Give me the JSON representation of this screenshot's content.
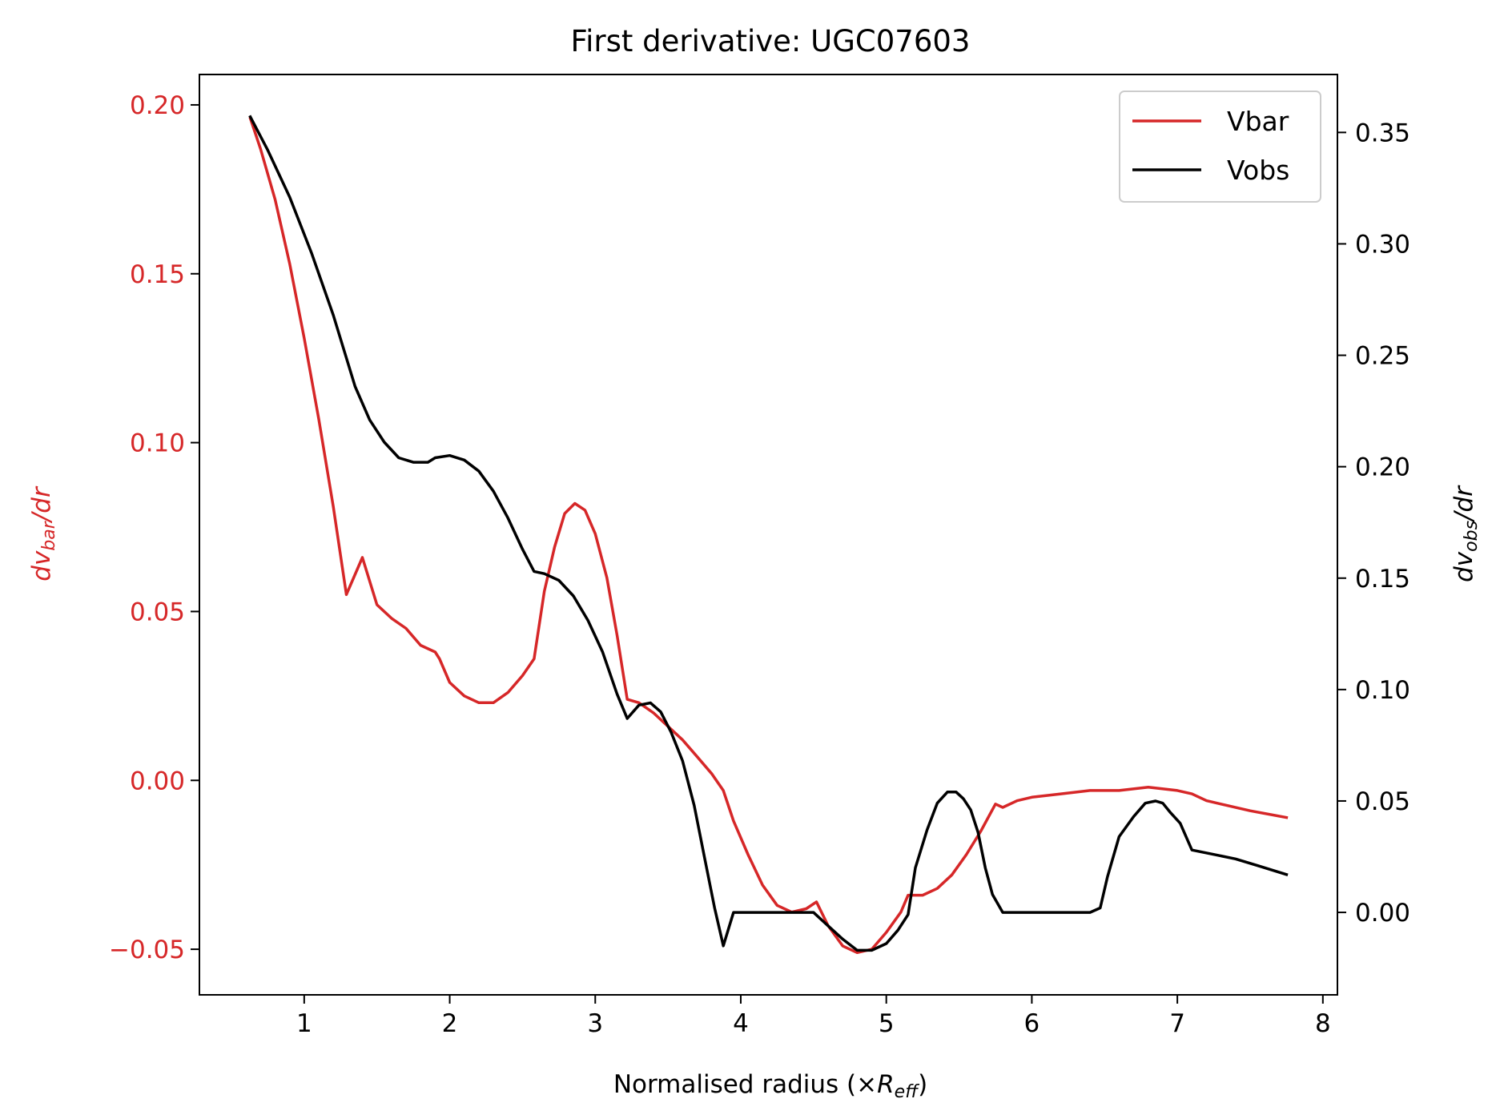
{
  "chart_data": {
    "type": "line",
    "title": "First derivative: UGC07603",
    "xlabel": {
      "prefix": "Normalised radius (×",
      "sym": "R",
      "sub": "eff",
      "suffix": ")"
    },
    "ylabel_left": {
      "prefix": "dv",
      "sub": "bar",
      "suffix": "/dr"
    },
    "ylabel_right": {
      "prefix": "dv",
      "sub": "obs",
      "suffix": "/dr"
    },
    "xlim": [
      0.28,
      8.1
    ],
    "ylim_left": [
      -0.0635,
      0.209
    ],
    "ylim_right": [
      -0.037,
      0.376
    ],
    "x_ticks": [
      1,
      2,
      3,
      4,
      5,
      6,
      7,
      8
    ],
    "x_tick_labels": [
      "1",
      "2",
      "3",
      "4",
      "5",
      "6",
      "7",
      "8"
    ],
    "y_left_ticks": [
      0.2,
      0.15,
      0.1,
      0.05,
      0.0,
      -0.05
    ],
    "y_left_tick_labels": [
      "0.20",
      "0.15",
      "0.10",
      "0.05",
      "0.00",
      "−0.05"
    ],
    "y_right_ticks": [
      0.35,
      0.3,
      0.25,
      0.2,
      0.15,
      0.1,
      0.05,
      0.0
    ],
    "y_right_tick_labels": [
      "0.35",
      "0.30",
      "0.25",
      "0.20",
      "0.15",
      "0.10",
      "0.05",
      "0.00"
    ],
    "legend_position": "top-right",
    "colors": {
      "vbar": "#d62728",
      "vobs": "#000000",
      "left_axis": "#d62728",
      "right_axis": "#000000"
    },
    "series": [
      {
        "name": "Vbar",
        "axis": "left",
        "x": [
          0.63,
          0.7,
          0.8,
          0.9,
          1.0,
          1.1,
          1.2,
          1.29,
          1.4,
          1.5,
          1.6,
          1.7,
          1.8,
          1.9,
          1.93,
          2.0,
          2.1,
          2.2,
          2.3,
          2.4,
          2.5,
          2.58,
          2.65,
          2.72,
          2.79,
          2.86,
          2.93,
          3.0,
          3.08,
          3.15,
          3.22,
          3.3,
          3.4,
          3.5,
          3.6,
          3.7,
          3.8,
          3.88,
          3.95,
          4.05,
          4.15,
          4.25,
          4.35,
          4.45,
          4.52,
          4.6,
          4.7,
          4.8,
          4.9,
          5.0,
          5.1,
          5.15,
          5.25,
          5.35,
          5.45,
          5.55,
          5.65,
          5.75,
          5.8,
          5.9,
          6.0,
          6.2,
          6.4,
          6.6,
          6.8,
          7.0,
          7.1,
          7.2,
          7.3,
          7.5,
          7.75
        ],
        "y": [
          0.196,
          0.187,
          0.172,
          0.153,
          0.131,
          0.107,
          0.081,
          0.055,
          0.066,
          0.052,
          0.048,
          0.045,
          0.04,
          0.038,
          0.036,
          0.029,
          0.025,
          0.023,
          0.023,
          0.026,
          0.031,
          0.036,
          0.056,
          0.069,
          0.079,
          0.082,
          0.08,
          0.073,
          0.06,
          0.043,
          0.024,
          0.023,
          0.02,
          0.016,
          0.012,
          0.007,
          0.002,
          -0.003,
          -0.012,
          -0.022,
          -0.031,
          -0.037,
          -0.039,
          -0.038,
          -0.036,
          -0.043,
          -0.049,
          -0.051,
          -0.05,
          -0.045,
          -0.039,
          -0.034,
          -0.034,
          -0.032,
          -0.028,
          -0.022,
          -0.015,
          -0.007,
          -0.008,
          -0.006,
          -0.005,
          -0.004,
          -0.003,
          -0.003,
          -0.002,
          -0.003,
          -0.004,
          -0.006,
          -0.007,
          -0.009,
          -0.011
        ]
      },
      {
        "name": "Vobs",
        "axis": "right",
        "x": [
          0.63,
          0.75,
          0.9,
          1.05,
          1.2,
          1.35,
          1.45,
          1.55,
          1.65,
          1.75,
          1.8,
          1.85,
          1.9,
          2.0,
          2.1,
          2.2,
          2.3,
          2.4,
          2.5,
          2.58,
          2.65,
          2.75,
          2.85,
          2.95,
          3.05,
          3.15,
          3.22,
          3.3,
          3.38,
          3.45,
          3.52,
          3.6,
          3.68,
          3.75,
          3.82,
          3.88,
          3.95,
          4.05,
          4.15,
          4.3,
          4.5,
          4.6,
          4.7,
          4.8,
          4.9,
          5.0,
          5.08,
          5.15,
          5.2,
          5.28,
          5.35,
          5.42,
          5.48,
          5.53,
          5.58,
          5.63,
          5.68,
          5.73,
          5.8,
          5.9,
          6.0,
          6.2,
          6.4,
          6.47,
          6.52,
          6.6,
          6.7,
          6.78,
          6.85,
          6.9,
          6.95,
          7.02,
          7.1,
          7.25,
          7.4,
          7.55,
          7.75
        ],
        "y": [
          0.357,
          0.342,
          0.321,
          0.296,
          0.268,
          0.236,
          0.221,
          0.211,
          0.204,
          0.202,
          0.202,
          0.202,
          0.204,
          0.205,
          0.203,
          0.198,
          0.189,
          0.177,
          0.163,
          0.153,
          0.152,
          0.149,
          0.142,
          0.131,
          0.117,
          0.098,
          0.087,
          0.093,
          0.094,
          0.09,
          0.081,
          0.068,
          0.048,
          0.025,
          0.002,
          -0.015,
          0.0,
          0.0,
          0.0,
          0.0,
          0.0,
          -0.006,
          -0.012,
          -0.017,
          -0.017,
          -0.014,
          -0.008,
          -0.001,
          0.02,
          0.037,
          0.049,
          0.054,
          0.054,
          0.051,
          0.046,
          0.036,
          0.02,
          0.008,
          0.0,
          0.0,
          0.0,
          0.0,
          0.0,
          0.002,
          0.016,
          0.034,
          0.043,
          0.049,
          0.05,
          0.049,
          0.045,
          0.04,
          0.028,
          0.026,
          0.024,
          0.021,
          0.017
        ]
      }
    ]
  }
}
